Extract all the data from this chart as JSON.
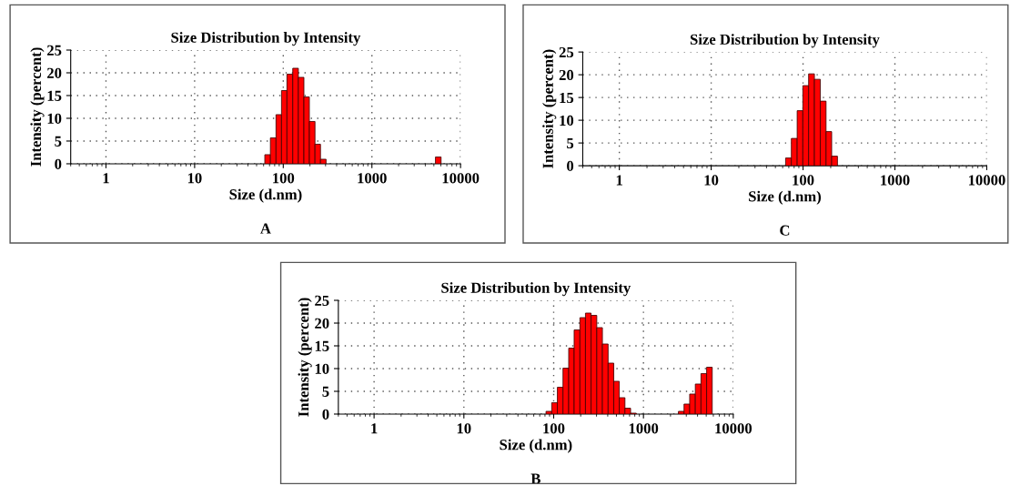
{
  "chart_data": [
    {
      "type": "histogram",
      "title": "Size Distribution by Intensity",
      "xlabel": "Size (d.nm)",
      "ylabel": "Intensity (percent)",
      "annotations": [
        "A"
      ],
      "log": "x",
      "grid": true,
      "color": "#ff0000",
      "bins": [
        61.9,
        71.6,
        82.8,
        95.5,
        110,
        128,
        148,
        171,
        197,
        228,
        263,
        304,
        5210,
        6030
      ],
      "values": [
        2.0,
        5.7,
        10.8,
        16.1,
        19.7,
        21.0,
        19.0,
        14.7,
        9.3,
        4.3,
        1.0,
        0,
        1.5
      ],
      "xlim": [
        0.4,
        10000
      ],
      "xticks": [
        1,
        10,
        100,
        1000,
        10000
      ],
      "ylim": [
        0,
        25
      ],
      "yticks": [
        0,
        5,
        10,
        15,
        20,
        25
      ]
    },
    {
      "type": "histogram",
      "title": "Size Distribution by Intensity",
      "xlabel": "Size (d.nm)",
      "ylabel": "Intensity (percent)",
      "annotations": [
        "C"
      ],
      "log": "x",
      "grid": true,
      "color": "#ff0000",
      "bins": [
        64.6,
        74.6,
        86.3,
        99.5,
        115,
        133,
        154,
        178,
        205,
        237
      ],
      "values": [
        1.7,
        6.0,
        12.1,
        17.6,
        20.2,
        19.0,
        14.2,
        7.5,
        2.1
      ],
      "xlim": [
        0.4,
        10000
      ],
      "xticks": [
        1,
        10,
        100,
        1000,
        10000
      ],
      "ylim": [
        0,
        25
      ],
      "yticks": [
        0,
        5,
        10,
        15,
        20,
        25
      ]
    },
    {
      "type": "histogram",
      "title": "Size Distribution by Intensity",
      "xlabel": "Size (d.nm)",
      "ylabel": "Intensity (percent)",
      "annotations": [
        "B"
      ],
      "log": "x",
      "grid": true,
      "color": "#ff0000",
      "bins": [
        82.2,
        95.1,
        110,
        127,
        147,
        169,
        196,
        226,
        261,
        302,
        349,
        404,
        467,
        538,
        622,
        719,
        832,
        2450,
        2830,
        3270,
        3780,
        4370,
        5050,
        5830
      ],
      "values": [
        0.6,
        2.5,
        5.9,
        10.1,
        14.5,
        18.5,
        21.2,
        22.2,
        21.7,
        19.0,
        15.4,
        11.2,
        7.2,
        3.6,
        1.3,
        0.2,
        0,
        0.6,
        2.2,
        4.4,
        6.6,
        8.9,
        10.3
      ],
      "xlim": [
        0.4,
        10000
      ],
      "xticks": [
        1,
        10,
        100,
        1000,
        10000
      ],
      "ylim": [
        0,
        25
      ],
      "yticks": [
        0,
        5,
        10,
        15,
        20,
        25
      ]
    }
  ]
}
